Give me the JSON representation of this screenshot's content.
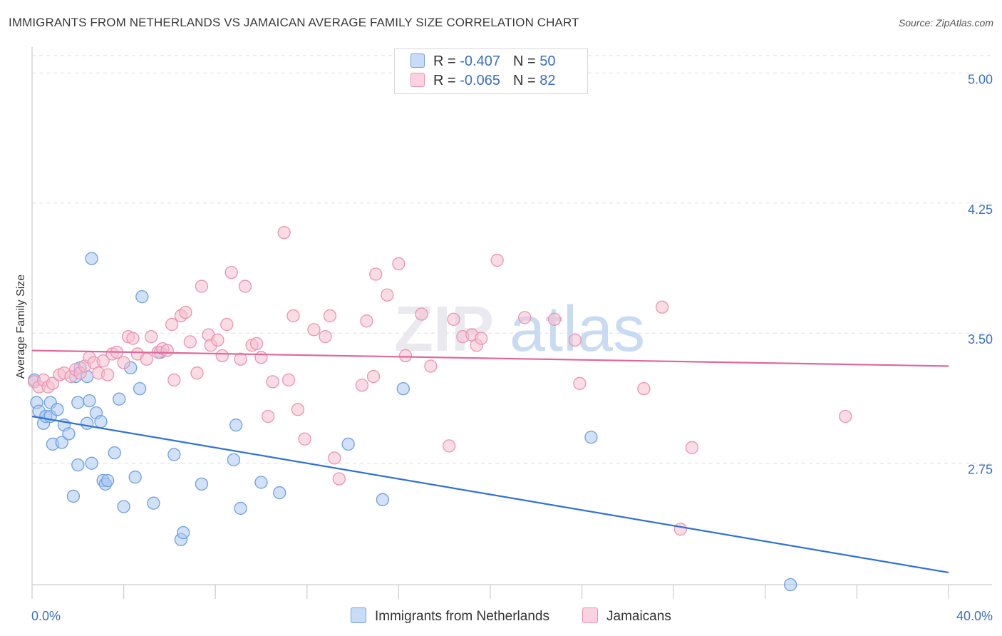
{
  "title": "IMMIGRANTS FROM NETHERLANDS VS JAMAICAN AVERAGE FAMILY SIZE CORRELATION CHART",
  "source": "Source: ZipAtlas.com",
  "watermark": {
    "zip": "ZIP",
    "atlas": "atlas"
  },
  "legend": {
    "rows": [
      {
        "r_label": "R = ",
        "r_value": "-0.407",
        "n_label": "N = ",
        "n_value": "50"
      },
      {
        "r_label": "R = ",
        "r_value": "-0.065",
        "n_label": "N = ",
        "n_value": "82"
      }
    ]
  },
  "colors": {
    "blue_fill": "#a9c8f2",
    "blue_stroke": "#6f9fe0",
    "blue_line": "#2f72d4",
    "pink_fill": "#f5bfd0",
    "pink_stroke": "#ec93b0",
    "pink_line": "#e0679a",
    "tick_text": "#3a6fc4",
    "grid": "#dddddd"
  },
  "chart_data": {
    "type": "scatter",
    "title": "IMMIGRANTS FROM NETHERLANDS VS JAMAICAN AVERAGE FAMILY SIZE CORRELATION CHART",
    "xlabel": "",
    "ylabel": "Average Family Size",
    "xlim": [
      0,
      40
    ],
    "ylim": [
      2.05,
      5.1
    ],
    "x_tick_labels": [
      "0.0%",
      "40.0%"
    ],
    "y_ticks": [
      2.75,
      3.5,
      4.25,
      5.0
    ],
    "y_tick_labels": [
      "2.75",
      "3.50",
      "4.25",
      "5.00"
    ],
    "grid": true,
    "legend_position": "bottom",
    "series": [
      {
        "name": "Immigrants from Netherlands",
        "color": "#a9c8f2",
        "trend": [
          [
            0,
            3.02
          ],
          [
            40,
            2.12
          ]
        ],
        "points": [
          [
            0.1,
            3.23
          ],
          [
            0.2,
            3.1
          ],
          [
            0.3,
            3.05
          ],
          [
            0.5,
            2.98
          ],
          [
            0.6,
            3.02
          ],
          [
            0.8,
            3.02
          ],
          [
            0.8,
            3.1
          ],
          [
            0.9,
            2.86
          ],
          [
            1.1,
            3.06
          ],
          [
            1.3,
            2.87
          ],
          [
            1.4,
            2.97
          ],
          [
            1.6,
            2.92
          ],
          [
            1.8,
            2.56
          ],
          [
            1.9,
            3.25
          ],
          [
            2.0,
            2.74
          ],
          [
            2.0,
            3.1
          ],
          [
            2.1,
            3.3
          ],
          [
            2.4,
            2.98
          ],
          [
            2.4,
            3.25
          ],
          [
            2.5,
            3.11
          ],
          [
            2.6,
            2.75
          ],
          [
            2.6,
            3.93
          ],
          [
            2.8,
            3.04
          ],
          [
            3.0,
            2.99
          ],
          [
            3.1,
            2.65
          ],
          [
            3.2,
            2.63
          ],
          [
            3.3,
            2.65
          ],
          [
            3.6,
            2.81
          ],
          [
            3.8,
            3.12
          ],
          [
            4.0,
            2.5
          ],
          [
            4.3,
            3.3
          ],
          [
            4.5,
            2.67
          ],
          [
            4.7,
            3.18
          ],
          [
            4.8,
            3.71
          ],
          [
            5.3,
            2.52
          ],
          [
            5.6,
            3.39
          ],
          [
            6.2,
            2.8
          ],
          [
            6.5,
            2.31
          ],
          [
            6.6,
            2.35
          ],
          [
            7.4,
            2.63
          ],
          [
            8.8,
            2.77
          ],
          [
            8.9,
            2.97
          ],
          [
            9.1,
            2.49
          ],
          [
            10.0,
            2.64
          ],
          [
            10.8,
            2.58
          ],
          [
            13.8,
            2.86
          ],
          [
            15.3,
            2.54
          ],
          [
            16.2,
            3.18
          ],
          [
            24.4,
            2.9
          ],
          [
            33.1,
            2.05
          ]
        ]
      },
      {
        "name": "Jamaicans",
        "color": "#f5bfd0",
        "trend": [
          [
            0,
            3.4
          ],
          [
            40,
            3.31
          ]
        ],
        "points": [
          [
            0.1,
            3.22
          ],
          [
            0.3,
            3.19
          ],
          [
            0.5,
            3.23
          ],
          [
            0.7,
            3.19
          ],
          [
            0.9,
            3.21
          ],
          [
            1.2,
            3.26
          ],
          [
            1.4,
            3.27
          ],
          [
            1.7,
            3.25
          ],
          [
            1.9,
            3.29
          ],
          [
            2.1,
            3.27
          ],
          [
            2.3,
            3.31
          ],
          [
            2.5,
            3.36
          ],
          [
            2.7,
            3.33
          ],
          [
            2.9,
            3.27
          ],
          [
            3.1,
            3.34
          ],
          [
            3.3,
            3.26
          ],
          [
            3.5,
            3.38
          ],
          [
            3.7,
            3.39
          ],
          [
            4.0,
            3.33
          ],
          [
            4.2,
            3.48
          ],
          [
            4.4,
            3.47
          ],
          [
            4.6,
            3.38
          ],
          [
            5.0,
            3.35
          ],
          [
            5.2,
            3.48
          ],
          [
            5.5,
            3.39
          ],
          [
            5.7,
            3.41
          ],
          [
            5.9,
            3.4
          ],
          [
            6.1,
            3.55
          ],
          [
            6.2,
            3.23
          ],
          [
            6.5,
            3.6
          ],
          [
            6.7,
            3.62
          ],
          [
            6.9,
            3.45
          ],
          [
            7.2,
            3.27
          ],
          [
            7.4,
            3.77
          ],
          [
            7.7,
            3.49
          ],
          [
            7.8,
            3.43
          ],
          [
            8.1,
            3.46
          ],
          [
            8.3,
            3.37
          ],
          [
            8.5,
            3.55
          ],
          [
            8.7,
            3.85
          ],
          [
            9.1,
            3.35
          ],
          [
            9.3,
            3.77
          ],
          [
            9.6,
            3.43
          ],
          [
            9.8,
            3.44
          ],
          [
            10.0,
            3.36
          ],
          [
            10.3,
            3.02
          ],
          [
            10.5,
            3.22
          ],
          [
            11.0,
            4.08
          ],
          [
            11.2,
            3.23
          ],
          [
            11.4,
            3.6
          ],
          [
            11.6,
            3.06
          ],
          [
            11.9,
            2.89
          ],
          [
            12.3,
            3.52
          ],
          [
            12.8,
            3.48
          ],
          [
            13.0,
            3.6
          ],
          [
            13.2,
            2.78
          ],
          [
            13.4,
            2.66
          ],
          [
            14.4,
            3.2
          ],
          [
            14.6,
            3.57
          ],
          [
            14.9,
            3.25
          ],
          [
            15.0,
            3.84
          ],
          [
            15.5,
            3.72
          ],
          [
            16.0,
            3.9
          ],
          [
            16.3,
            3.37
          ],
          [
            17.0,
            3.61
          ],
          [
            17.4,
            3.31
          ],
          [
            18.2,
            2.85
          ],
          [
            18.4,
            3.58
          ],
          [
            18.8,
            3.48
          ],
          [
            19.2,
            3.49
          ],
          [
            19.4,
            3.43
          ],
          [
            19.6,
            3.47
          ],
          [
            20.3,
            3.92
          ],
          [
            21.5,
            3.59
          ],
          [
            22.8,
            3.58
          ],
          [
            23.7,
            3.46
          ],
          [
            23.9,
            3.21
          ],
          [
            26.7,
            3.18
          ],
          [
            27.5,
            3.65
          ],
          [
            28.8,
            2.84
          ],
          [
            28.3,
            2.37
          ],
          [
            35.5,
            3.02
          ]
        ]
      }
    ]
  }
}
